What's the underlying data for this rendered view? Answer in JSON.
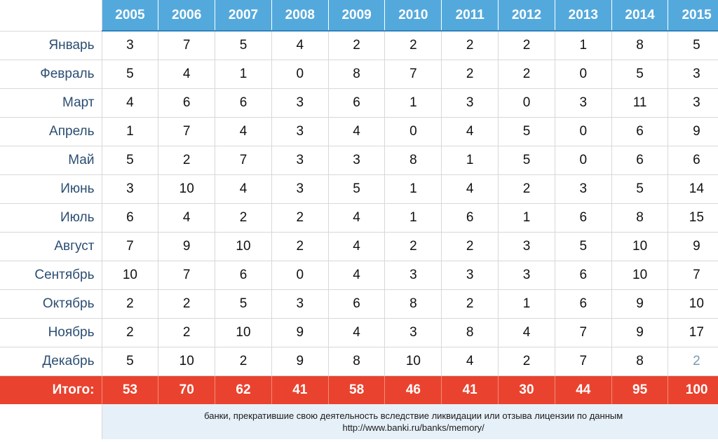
{
  "chart_data": {
    "type": "table",
    "years": [
      "2005",
      "2006",
      "2007",
      "2008",
      "2009",
      "2010",
      "2011",
      "2012",
      "2013",
      "2014",
      "2015"
    ],
    "rows": [
      {
        "label": "Январь",
        "values": [
          "3",
          "7",
          "5",
          "4",
          "2",
          "2",
          "2",
          "2",
          "1",
          "8",
          "5"
        ]
      },
      {
        "label": "Февраль",
        "values": [
          "5",
          "4",
          "1",
          "0",
          "8",
          "7",
          "2",
          "2",
          "0",
          "5",
          "3"
        ]
      },
      {
        "label": "Март",
        "values": [
          "4",
          "6",
          "6",
          "3",
          "6",
          "1",
          "3",
          "0",
          "3",
          "11",
          "3"
        ]
      },
      {
        "label": "Апрель",
        "values": [
          "1",
          "7",
          "4",
          "3",
          "4",
          "0",
          "4",
          "5",
          "0",
          "6",
          "9"
        ]
      },
      {
        "label": "Май",
        "values": [
          "5",
          "2",
          "7",
          "3",
          "3",
          "8",
          "1",
          "5",
          "0",
          "6",
          "6"
        ]
      },
      {
        "label": "Июнь",
        "values": [
          "3",
          "10",
          "4",
          "3",
          "5",
          "1",
          "4",
          "2",
          "3",
          "5",
          "14"
        ]
      },
      {
        "label": "Июль",
        "values": [
          "6",
          "4",
          "2",
          "2",
          "4",
          "1",
          "6",
          "1",
          "6",
          "8",
          "15"
        ]
      },
      {
        "label": "Август",
        "values": [
          "7",
          "9",
          "10",
          "2",
          "4",
          "2",
          "2",
          "3",
          "5",
          "10",
          "9"
        ]
      },
      {
        "label": "Сентябрь",
        "values": [
          "10",
          "7",
          "6",
          "0",
          "4",
          "3",
          "3",
          "3",
          "6",
          "10",
          "7"
        ]
      },
      {
        "label": "Октябрь",
        "values": [
          "2",
          "2",
          "5",
          "3",
          "6",
          "8",
          "2",
          "1",
          "6",
          "9",
          "10"
        ]
      },
      {
        "label": "Ноябрь",
        "values": [
          "2",
          "2",
          "10",
          "9",
          "4",
          "3",
          "8",
          "4",
          "7",
          "9",
          "17"
        ]
      },
      {
        "label": "Декабрь",
        "values": [
          "5",
          "10",
          "2",
          "9",
          "8",
          "10",
          "4",
          "2",
          "7",
          "8",
          "2"
        ]
      }
    ],
    "total_label": "Итого:",
    "totals": [
      "53",
      "70",
      "62",
      "41",
      "58",
      "46",
      "41",
      "30",
      "44",
      "95",
      "100"
    ],
    "footnote_line1": "банки, прекратившие свою деятельность вследствие ликвидации или отзыва лицензии по данным",
    "footnote_line2": "http://www.banki.ru/banks/memory/"
  },
  "colors": {
    "header_bg": "#54a9dc",
    "total_bg": "#e9432f",
    "footnote_bg": "#e6f0f8",
    "month_label": "#2b4e72",
    "muted_value": "#7a99b4"
  }
}
